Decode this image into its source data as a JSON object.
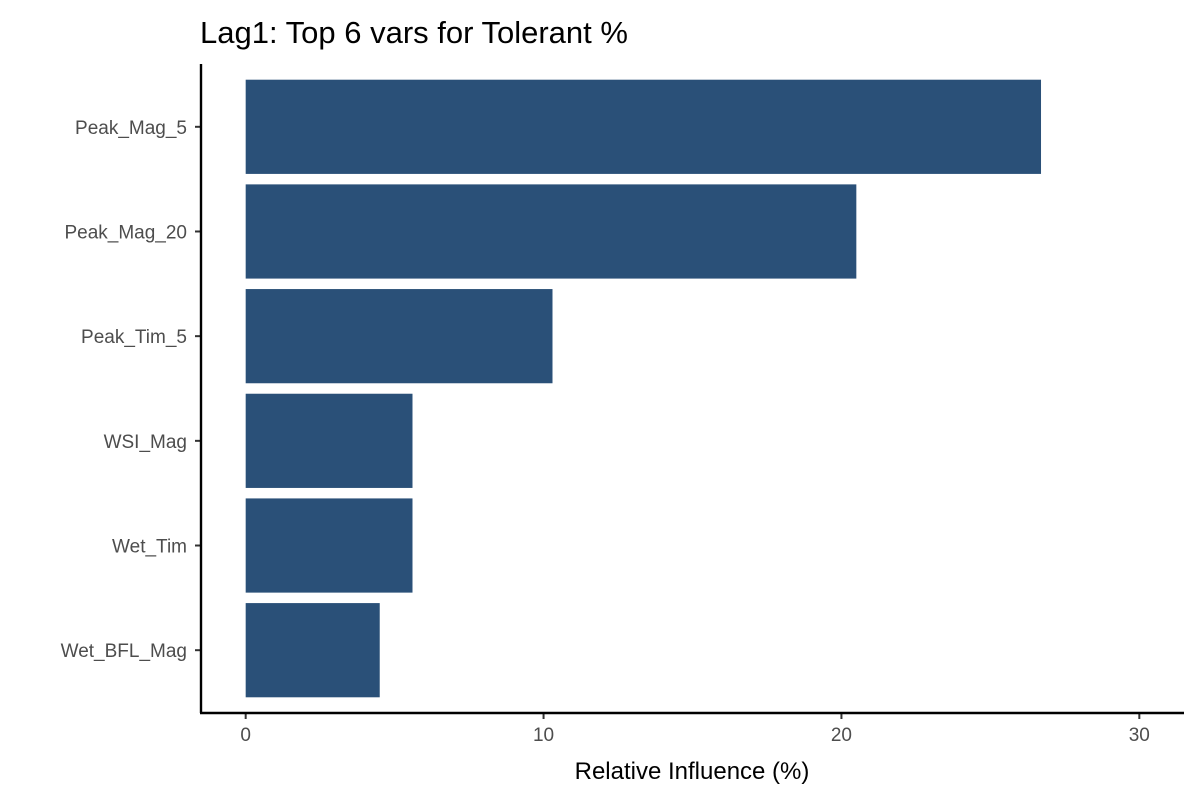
{
  "chart_data": {
    "type": "bar",
    "orientation": "horizontal",
    "title": "Lag1: Top 6 vars for Tolerant %",
    "xlabel": "Relative Influence (%)",
    "ylabel": "",
    "categories": [
      "Peak_Mag_5",
      "Peak_Mag_20",
      "Peak_Tim_5",
      "WSI_Mag",
      "Wet_Tim",
      "Wet_BFL_Mag"
    ],
    "values": [
      26.7,
      20.5,
      10.3,
      5.6,
      5.6,
      4.5
    ],
    "xlim": [
      -1.5,
      31.5
    ],
    "xticks": [
      0,
      10,
      20,
      30
    ],
    "xtick_labels": [
      "0",
      "10",
      "20",
      "30"
    ],
    "bar_color": "#2a5078",
    "grid": false,
    "legend": "none"
  }
}
